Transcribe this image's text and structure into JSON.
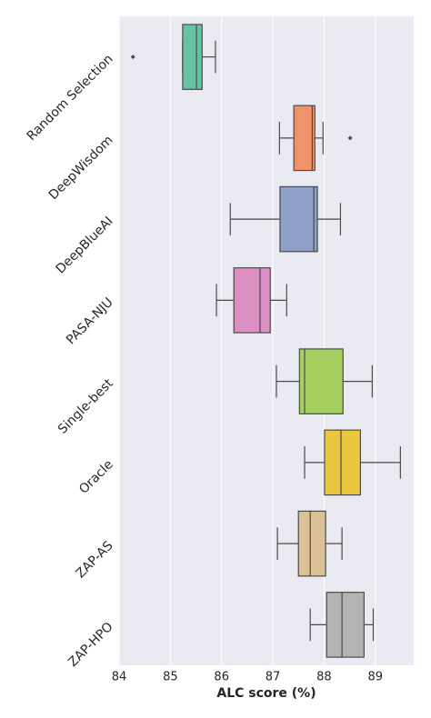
{
  "chart_data": {
    "type": "boxplot",
    "orientation": "horizontal",
    "xlabel": "ALC score (%)",
    "categories": [
      "Random Selection",
      "DeepWisdom",
      "DeepBlueAI",
      "PASA-NJU",
      "Single-best",
      "Oracle",
      "ZAP-AS",
      "ZAP-HPO"
    ],
    "colors": [
      "#66c2a5",
      "#f0936b",
      "#8fa0c8",
      "#dc8fc2",
      "#a5cf5e",
      "#e9c83f",
      "#dcc196",
      "#b3b3b3"
    ],
    "boxes": [
      {
        "min": 85.24,
        "q1": 85.24,
        "median": 85.51,
        "q3": 85.62,
        "max": 85.88,
        "outliers": [
          84.27
        ]
      },
      {
        "min": 87.13,
        "q1": 87.41,
        "median": 87.77,
        "q3": 87.82,
        "max": 87.98,
        "outliers": [
          88.51
        ]
      },
      {
        "min": 86.17,
        "q1": 87.14,
        "median": 87.8,
        "q3": 87.87,
        "max": 88.32,
        "outliers": []
      },
      {
        "min": 85.9,
        "q1": 86.24,
        "median": 86.75,
        "q3": 86.95,
        "max": 87.27,
        "outliers": []
      },
      {
        "min": 87.07,
        "q1": 87.52,
        "median": 87.62,
        "q3": 88.37,
        "max": 88.94,
        "outliers": []
      },
      {
        "min": 87.62,
        "q1": 88.01,
        "median": 88.33,
        "q3": 88.71,
        "max": 89.49,
        "outliers": []
      },
      {
        "min": 87.09,
        "q1": 87.5,
        "median": 87.73,
        "q3": 88.03,
        "max": 88.35,
        "outliers": []
      },
      {
        "min": 87.73,
        "q1": 88.05,
        "median": 88.35,
        "q3": 88.78,
        "max": 88.96,
        "outliers": []
      }
    ],
    "xlim": [
      84,
      89.75
    ],
    "xticks": [
      84,
      85,
      86,
      87,
      88,
      89
    ],
    "grid": true
  }
}
